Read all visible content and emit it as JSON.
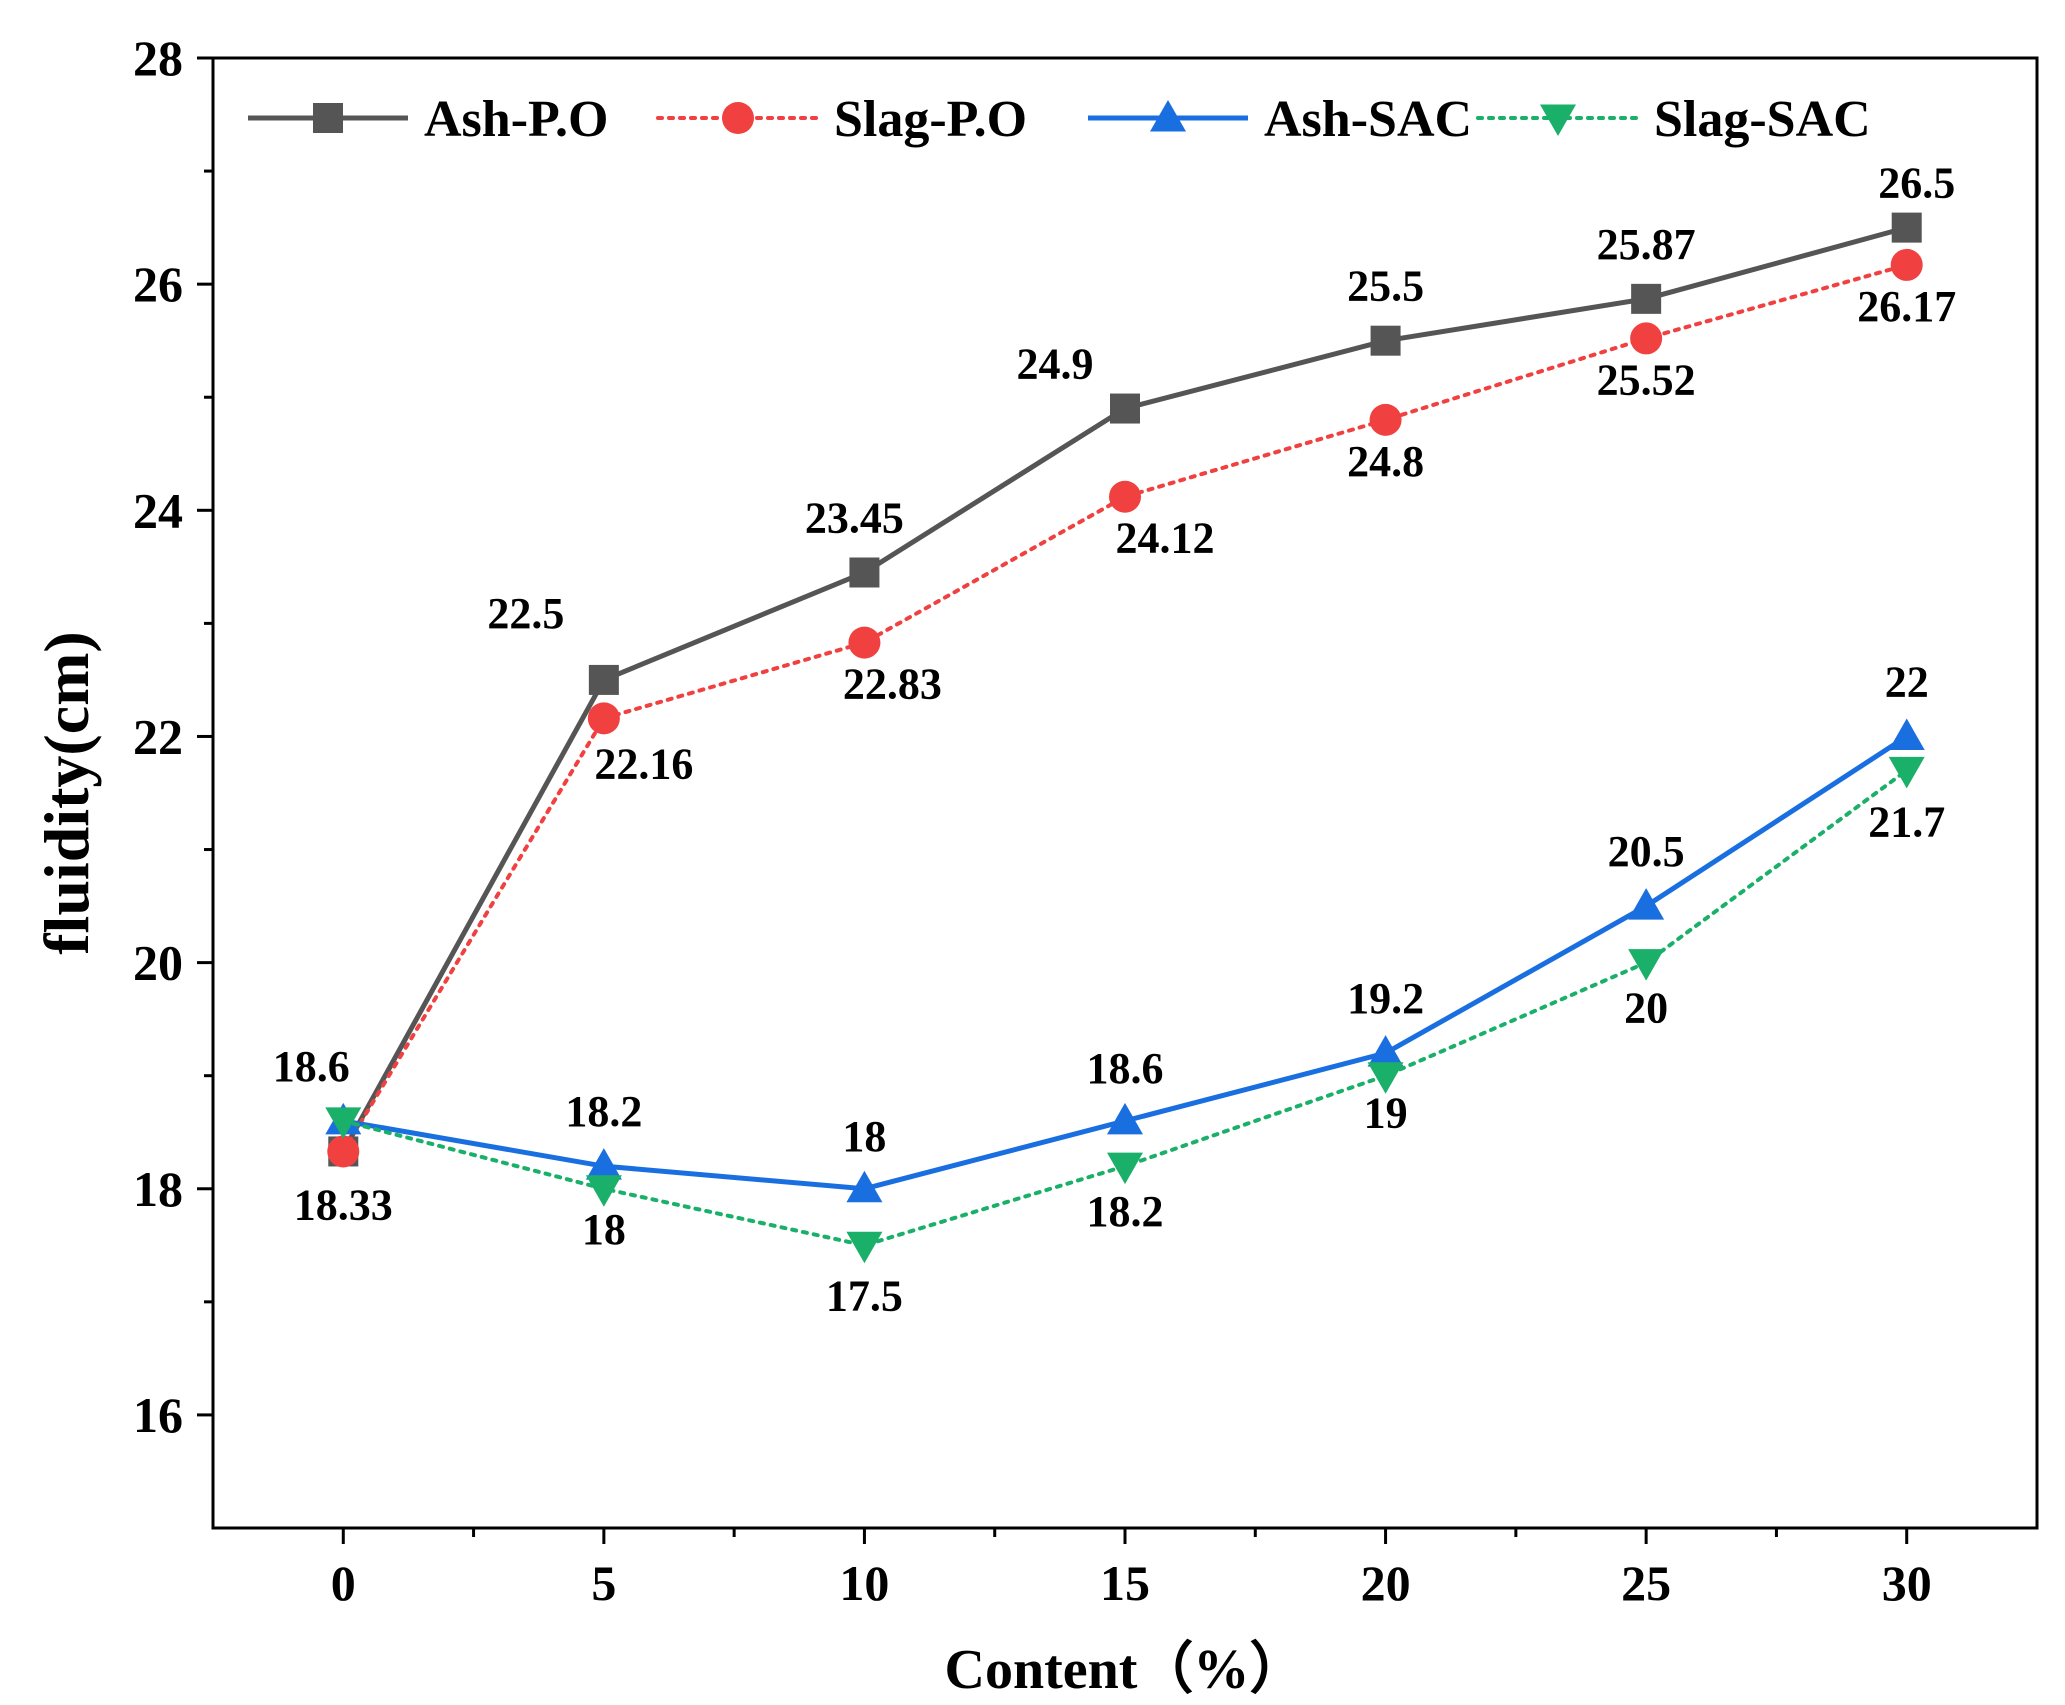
{
  "chart_data": {
    "type": "line",
    "title": "",
    "xlabel": "Content（%）",
    "ylabel": "fluidity(cm)",
    "x": [
      0,
      5,
      10,
      15,
      20,
      25,
      30
    ],
    "xlim": [
      -2.5,
      32.5
    ],
    "ylim": [
      15,
      28
    ],
    "xticks": [
      0,
      5,
      10,
      15,
      20,
      25,
      30
    ],
    "yticks": [
      16,
      18,
      20,
      22,
      24,
      26,
      28
    ],
    "legend_position": "top",
    "series": [
      {
        "name": "Ash-P.O",
        "values": [
          18.33,
          22.5,
          23.45,
          24.9,
          25.5,
          25.87,
          26.5
        ],
        "color": "#555555",
        "line": "solid",
        "marker": "square",
        "labels": [
          "",
          "22.5",
          "23.45",
          "24.9",
          "25.5",
          "25.87",
          "26.5"
        ]
      },
      {
        "name": "Slag-P.O",
        "values": [
          18.33,
          22.16,
          22.83,
          24.12,
          24.8,
          25.52,
          26.17
        ],
        "color": "#f04040",
        "line": "dotted",
        "marker": "circle",
        "labels": [
          "18.33",
          "22.16",
          "22.83",
          "24.12",
          "24.8",
          "25.52",
          "26.17"
        ]
      },
      {
        "name": "Ash-SAC",
        "values": [
          18.6,
          18.2,
          18.0,
          18.6,
          19.2,
          20.5,
          22.0
        ],
        "color": "#1a6fe0",
        "line": "solid",
        "marker": "triangle-up",
        "labels": [
          "18.6",
          "18.2",
          "18",
          "18.6",
          "19.2",
          "20.5",
          "22"
        ]
      },
      {
        "name": "Slag-SAC",
        "values": [
          18.6,
          18.0,
          17.5,
          18.2,
          19.0,
          20.0,
          21.7
        ],
        "color": "#1ab06a",
        "line": "dotted",
        "marker": "triangle-down",
        "labels": [
          "",
          "18",
          "17.5",
          "18.2",
          "19",
          "20",
          "21.7"
        ]
      }
    ]
  }
}
